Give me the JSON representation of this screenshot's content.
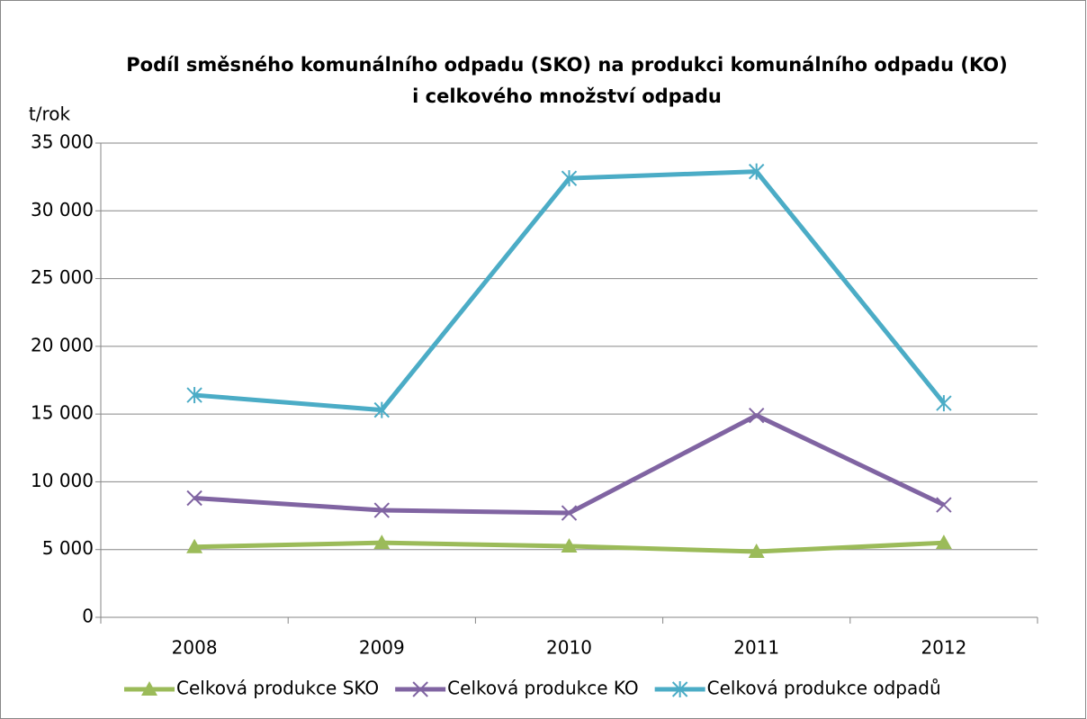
{
  "chart_data": {
    "type": "line",
    "title": [
      "Podíl směsného komunálního odpadu (SKO) na produkci komunálního odpadu (KO)",
      "i celkového množství odpadu"
    ],
    "y_label": "t/rok",
    "categories": [
      "2008",
      "2009",
      "2010",
      "2011",
      "2012"
    ],
    "series": [
      {
        "name": "Celková produkce SKO",
        "color": "#9bbb59",
        "marker": "triangle",
        "values": [
          5200,
          5500,
          5250,
          4850,
          5500
        ]
      },
      {
        "name": "Celková produkce KO",
        "color": "#8064a2",
        "marker": "x",
        "values": [
          8800,
          7900,
          7700,
          14900,
          8300
        ]
      },
      {
        "name": "Celková produkce odpadů",
        "color": "#4bacc6",
        "marker": "star",
        "values": [
          16400,
          15300,
          32400,
          32900,
          15800
        ]
      }
    ],
    "ylim": [
      0,
      35000
    ],
    "yticks": [
      0,
      {
        "value": 5000,
        "label": "5 000"
      },
      {
        "value": 10000,
        "label": "10 000"
      },
      {
        "value": 15000,
        "label": "15 000"
      },
      {
        "value": 20000,
        "label": "20 000"
      },
      {
        "value": 25000,
        "label": "25 000"
      },
      {
        "value": 30000,
        "label": "30 000"
      },
      {
        "value": 35000,
        "label": "35 000"
      }
    ],
    "grid": true,
    "legend": "bottom"
  }
}
